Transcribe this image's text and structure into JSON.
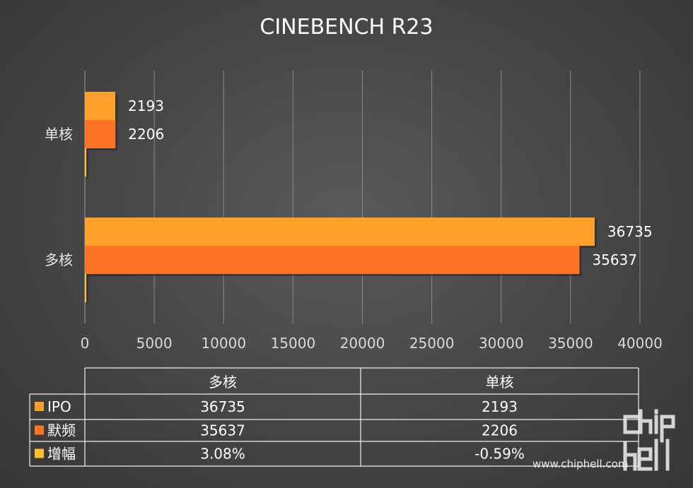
{
  "chart_data": {
    "type": "bar",
    "orientation": "horizontal",
    "title": "CINEBENCH R23",
    "categories": [
      "单核",
      "多核"
    ],
    "series": [
      {
        "name": "IPO",
        "color": "#FFA02A",
        "values": [
          2193,
          36735
        ]
      },
      {
        "name": "默频",
        "color": "#FF7424",
        "values": [
          2206,
          35637
        ]
      },
      {
        "name": "增幅",
        "color": "#FFC02A",
        "values": [
          -0.59,
          3.08
        ]
      }
    ],
    "xlim": [
      0,
      40000
    ],
    "xticks": [
      "0",
      "5000",
      "10000",
      "15000",
      "20000",
      "25000",
      "30000",
      "35000",
      "40000"
    ],
    "grid": true,
    "legend": "data-table",
    "data_table": {
      "headers": [
        "多核",
        "单核"
      ],
      "rows": [
        {
          "label": "IPO",
          "color": "#FFA02A",
          "values": [
            "36735",
            "2193"
          ]
        },
        {
          "label": "默频",
          "color": "#FF7424",
          "values": [
            "35637",
            "2206"
          ]
        },
        {
          "label": "增幅",
          "color": "#FFC02A",
          "values": [
            "3.08%",
            "-0.59%"
          ]
        }
      ]
    }
  },
  "watermark": {
    "logo_text": "chiphell",
    "url": "www.chiphell.com"
  }
}
